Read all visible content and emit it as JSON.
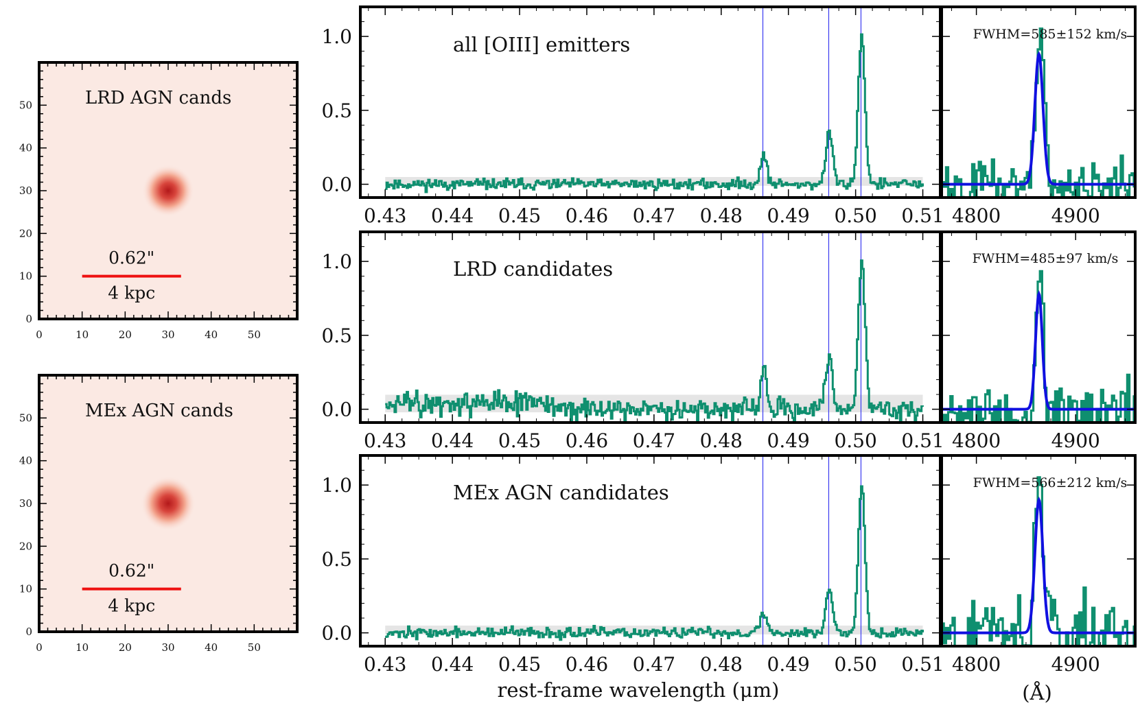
{
  "colors": {
    "spectrum": "#0f8f6f",
    "fit": "#1010e0",
    "line_marker": "#3a3af0",
    "fwhm_text": "#1414e6",
    "scale_bar": "#ee1111",
    "image_background": "#fbe9e3",
    "source_core": "#b3181a",
    "noise_band": "#cfcfcf"
  },
  "chart_data": [
    {
      "type": "heatmap",
      "id": "img-lrd",
      "title": "LRD AGN cands",
      "xticks": [
        "0",
        "10",
        "20",
        "30",
        "40",
        "50"
      ],
      "yticks": [
        "0",
        "10",
        "20",
        "30",
        "40",
        "50"
      ],
      "xlim": [
        0,
        60
      ],
      "ylim": [
        0,
        60
      ],
      "source_center": [
        30,
        30
      ],
      "scale_bar": {
        "x": [
          10,
          33
        ],
        "y": 10,
        "label_top": "0.62\"",
        "label_bottom": "4 kpc"
      }
    },
    {
      "type": "heatmap",
      "id": "img-mex",
      "title": "MEx AGN cands",
      "xticks": [
        "0",
        "10",
        "20",
        "30",
        "40",
        "50"
      ],
      "yticks": [
        "0",
        "10",
        "20",
        "30",
        "40",
        "50"
      ],
      "xlim": [
        0,
        60
      ],
      "ylim": [
        0,
        60
      ],
      "source_center": [
        30,
        30
      ],
      "scale_bar": {
        "x": [
          10,
          33
        ],
        "y": 10,
        "label_top": "0.62\"",
        "label_bottom": "4 kpc"
      }
    },
    {
      "type": "line",
      "id": "spec-all",
      "title": "all [OIII] emitters",
      "xlim": [
        0.4263,
        0.5126
      ],
      "ylim": [
        -0.09,
        1.2
      ],
      "xticks": [
        "0.43",
        "0.44",
        "0.45",
        "0.46",
        "0.47",
        "0.48",
        "0.49",
        "0.50",
        "0.51"
      ],
      "yticks": [
        "0.0",
        "0.5",
        "1.0"
      ],
      "emission_lines_um": [
        0.4862,
        0.496,
        0.5008
      ],
      "line_peaks": [
        0.19,
        0.35,
        1.0
      ],
      "line_widths_um": [
        0.0005,
        0.0005,
        0.0005
      ],
      "noise_level": 0.035,
      "series": [
        {
          "name": "stacked spectrum",
          "x_range": [
            0.43,
            0.51
          ]
        }
      ]
    },
    {
      "type": "line",
      "id": "zoom-all",
      "xlim": [
        4765,
        4960
      ],
      "ylim": [
        -0.09,
        1.2
      ],
      "xticks": [
        "4800",
        "4900"
      ],
      "fwhm_label": "FWHM=585±152 km/s",
      "data_peak": 1.0,
      "fit": {
        "center": 4863,
        "amplitude": 0.88,
        "sigma": 4.1
      },
      "noise_level": 0.13
    },
    {
      "type": "line",
      "id": "spec-lrd",
      "title": "LRD candidates",
      "xlim": [
        0.4263,
        0.5126
      ],
      "ylim": [
        -0.09,
        1.2
      ],
      "xticks": [
        "0.43",
        "0.44",
        "0.45",
        "0.46",
        "0.47",
        "0.48",
        "0.49",
        "0.50",
        "0.51"
      ],
      "yticks": [
        "0.0",
        "0.5",
        "1.0"
      ],
      "emission_lines_um": [
        0.4862,
        0.496,
        0.5008
      ],
      "line_peaks": [
        0.28,
        0.35,
        1.0
      ],
      "line_widths_um": [
        0.0004,
        0.0005,
        0.0005
      ],
      "noise_level": 0.07,
      "series": [
        {
          "name": "stacked spectrum",
          "x_range": [
            0.43,
            0.51
          ]
        }
      ]
    },
    {
      "type": "line",
      "id": "zoom-lrd",
      "xlim": [
        4765,
        4960
      ],
      "ylim": [
        -0.09,
        1.2
      ],
      "xticks": [
        "4800",
        "4900"
      ],
      "fwhm_label": "FWHM=485±97 km/s",
      "data_peak": 1.0,
      "fit": {
        "center": 4863,
        "amplitude": 0.78,
        "sigma": 3.4
      },
      "noise_level": 0.16
    },
    {
      "type": "line",
      "id": "spec-mex",
      "title": "MEx AGN candidates",
      "xlim": [
        0.4263,
        0.5126
      ],
      "ylim": [
        -0.09,
        1.2
      ],
      "xticks": [
        "0.43",
        "0.44",
        "0.45",
        "0.46",
        "0.47",
        "0.48",
        "0.49",
        "0.50",
        "0.51"
      ],
      "yticks": [
        "0.0",
        "0.5",
        "1.0"
      ],
      "emission_lines_um": [
        0.4862,
        0.496,
        0.5008
      ],
      "line_peaks": [
        0.13,
        0.3,
        1.0
      ],
      "line_widths_um": [
        0.0005,
        0.0005,
        0.0005
      ],
      "noise_level": 0.035,
      "series": [
        {
          "name": "stacked spectrum",
          "x_range": [
            0.43,
            0.51
          ]
        }
      ]
    },
    {
      "type": "line",
      "id": "zoom-mex",
      "xlim": [
        4765,
        4960
      ],
      "ylim": [
        -0.09,
        1.2
      ],
      "xticks": [
        "4800",
        "4900"
      ],
      "fwhm_label": "FWHM=566±212 km/s",
      "data_peak": 1.0,
      "fit": {
        "center": 4863,
        "amplitude": 0.9,
        "sigma": 4.0
      },
      "noise_level": 0.2
    }
  ],
  "axes": {
    "spectrum_xlabel": "rest-frame wavelength (μm)",
    "zoom_xlabel": "(Å)"
  }
}
